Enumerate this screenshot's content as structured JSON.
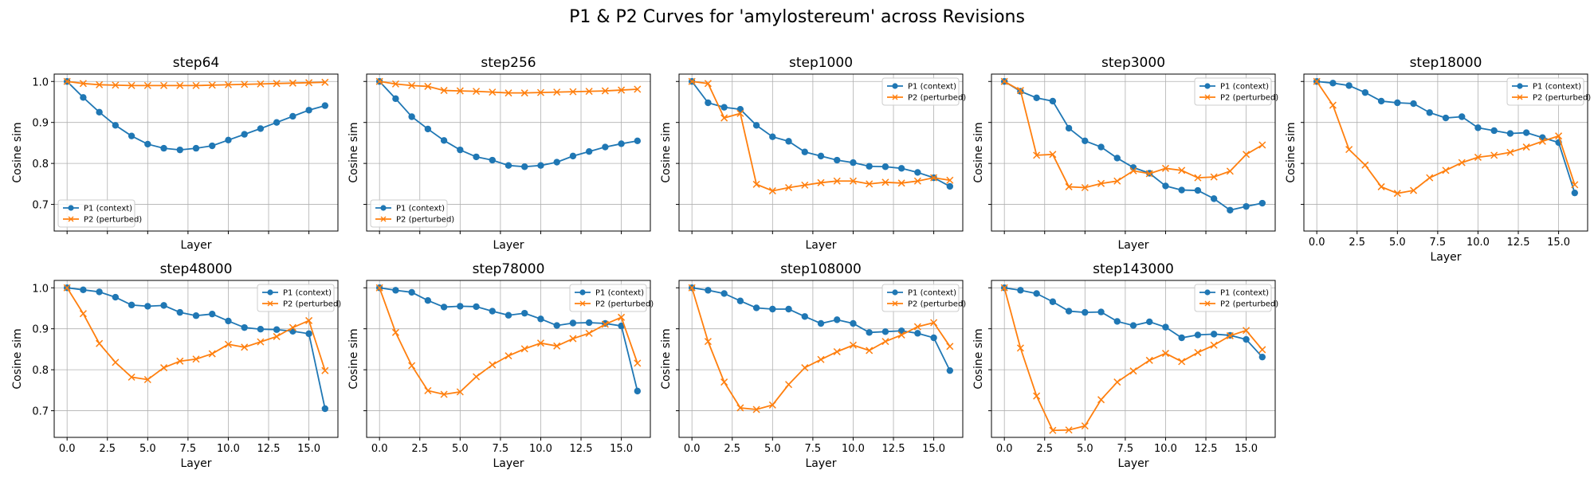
{
  "figure": {
    "title": "P1 & P2 Curves for 'amylostereum' across Revisions"
  },
  "colors": {
    "p1": "#1f77b4",
    "p2": "#ff7f0e",
    "grid": "#b0b0b0"
  },
  "chart_data": [
    {
      "type": "line",
      "title": "step64",
      "xlabel": "Layer",
      "ylabel": "Cosine sim",
      "x": [
        0,
        1,
        2,
        3,
        4,
        5,
        6,
        7,
        8,
        9,
        10,
        11,
        12,
        13,
        14,
        15,
        16
      ],
      "xlim": [
        -0.8,
        16.8
      ],
      "ylim": [
        0.635,
        1.018
      ],
      "grid": true,
      "legend_position": "lower-left",
      "series": [
        {
          "name": "P1 (context)",
          "marker": "circle",
          "values": [
            1.0,
            0.961,
            0.925,
            0.893,
            0.867,
            0.847,
            0.837,
            0.833,
            0.837,
            0.843,
            0.857,
            0.871,
            0.885,
            0.9,
            0.915,
            0.93,
            0.941
          ]
        },
        {
          "name": "P2 (perturbed)",
          "marker": "x",
          "values": [
            1.0,
            0.995,
            0.992,
            0.991,
            0.99,
            0.99,
            0.99,
            0.99,
            0.99,
            0.991,
            0.992,
            0.993,
            0.994,
            0.995,
            0.996,
            0.997,
            0.998
          ]
        }
      ]
    },
    {
      "type": "line",
      "title": "step256",
      "xlabel": "Layer",
      "ylabel": "Cosine sim",
      "x": [
        0,
        1,
        2,
        3,
        4,
        5,
        6,
        7,
        8,
        9,
        10,
        11,
        12,
        13,
        14,
        15,
        16
      ],
      "xlim": [
        -0.8,
        16.8
      ],
      "ylim": [
        0.635,
        1.018
      ],
      "grid": true,
      "legend_position": "lower-left",
      "series": [
        {
          "name": "P1 (context)",
          "marker": "circle",
          "values": [
            1.0,
            0.958,
            0.914,
            0.884,
            0.856,
            0.833,
            0.816,
            0.808,
            0.795,
            0.792,
            0.795,
            0.803,
            0.818,
            0.829,
            0.84,
            0.848,
            0.855
          ]
        },
        {
          "name": "P2 (perturbed)",
          "marker": "x",
          "values": [
            1.0,
            0.994,
            0.99,
            0.988,
            0.978,
            0.977,
            0.976,
            0.974,
            0.972,
            0.972,
            0.973,
            0.974,
            0.975,
            0.976,
            0.977,
            0.979,
            0.981
          ]
        }
      ]
    },
    {
      "type": "line",
      "title": "step1000",
      "xlabel": "Layer",
      "ylabel": "Cosine sim",
      "x": [
        0,
        1,
        2,
        3,
        4,
        5,
        6,
        7,
        8,
        9,
        10,
        11,
        12,
        13,
        14,
        15,
        16
      ],
      "xlim": [
        -0.8,
        16.8
      ],
      "ylim": [
        0.635,
        1.018
      ],
      "grid": true,
      "legend_position": "upper-right",
      "series": [
        {
          "name": "P1 (context)",
          "marker": "circle",
          "values": [
            1.0,
            0.948,
            0.937,
            0.932,
            0.893,
            0.865,
            0.854,
            0.828,
            0.818,
            0.808,
            0.802,
            0.793,
            0.792,
            0.788,
            0.778,
            0.765,
            0.744
          ]
        },
        {
          "name": "P2 (perturbed)",
          "marker": "x",
          "values": [
            1.0,
            0.995,
            0.911,
            0.922,
            0.749,
            0.733,
            0.741,
            0.747,
            0.753,
            0.757,
            0.757,
            0.75,
            0.754,
            0.752,
            0.757,
            0.765,
            0.759
          ]
        }
      ]
    },
    {
      "type": "line",
      "title": "step3000",
      "xlabel": "Layer",
      "ylabel": "Cosine sim",
      "x": [
        0,
        1,
        2,
        3,
        4,
        5,
        6,
        7,
        8,
        9,
        10,
        11,
        12,
        13,
        14,
        15,
        16
      ],
      "xlim": [
        -0.8,
        16.8
      ],
      "ylim": [
        0.635,
        1.018
      ],
      "grid": true,
      "legend_position": "upper-right",
      "series": [
        {
          "name": "P1 (context)",
          "marker": "circle",
          "values": [
            1.0,
            0.976,
            0.96,
            0.952,
            0.886,
            0.855,
            0.84,
            0.813,
            0.79,
            0.776,
            0.745,
            0.735,
            0.734,
            0.714,
            0.686,
            0.695,
            0.703
          ]
        },
        {
          "name": "P2 (perturbed)",
          "marker": "x",
          "values": [
            1.0,
            0.978,
            0.82,
            0.822,
            0.743,
            0.741,
            0.751,
            0.757,
            0.782,
            0.775,
            0.788,
            0.783,
            0.765,
            0.767,
            0.781,
            0.822,
            0.845
          ]
        }
      ]
    },
    {
      "type": "line",
      "title": "step18000",
      "xlabel": "Layer",
      "ylabel": "Cosine sim",
      "x": [
        0,
        1,
        2,
        3,
        4,
        5,
        6,
        7,
        8,
        9,
        10,
        11,
        12,
        13,
        14,
        15,
        16
      ],
      "xlim": [
        -0.8,
        16.8
      ],
      "ylim": [
        0.635,
        1.018
      ],
      "grid": true,
      "legend_position": "upper-right",
      "series": [
        {
          "name": "P1 (context)",
          "marker": "circle",
          "values": [
            1.0,
            0.996,
            0.99,
            0.973,
            0.952,
            0.948,
            0.946,
            0.924,
            0.911,
            0.914,
            0.887,
            0.88,
            0.873,
            0.875,
            0.863,
            0.851,
            0.728
          ]
        },
        {
          "name": "P2 (perturbed)",
          "marker": "x",
          "values": [
            1.0,
            0.942,
            0.834,
            0.796,
            0.743,
            0.727,
            0.734,
            0.765,
            0.783,
            0.802,
            0.815,
            0.82,
            0.827,
            0.84,
            0.854,
            0.867,
            0.748
          ]
        }
      ]
    },
    {
      "type": "line",
      "title": "step48000",
      "xlabel": "Layer",
      "ylabel": "Cosine sim",
      "x": [
        0,
        1,
        2,
        3,
        4,
        5,
        6,
        7,
        8,
        9,
        10,
        11,
        12,
        13,
        14,
        15,
        16
      ],
      "xlim": [
        -0.8,
        16.8
      ],
      "ylim": [
        0.635,
        1.018
      ],
      "grid": true,
      "legend_position": "upper-right",
      "series": [
        {
          "name": "P1 (context)",
          "marker": "circle",
          "values": [
            1.0,
            0.995,
            0.99,
            0.977,
            0.958,
            0.955,
            0.957,
            0.94,
            0.932,
            0.936,
            0.919,
            0.903,
            0.899,
            0.898,
            0.894,
            0.888,
            0.705
          ]
        },
        {
          "name": "P2 (perturbed)",
          "marker": "x",
          "values": [
            1.0,
            0.937,
            0.864,
            0.818,
            0.782,
            0.776,
            0.805,
            0.821,
            0.826,
            0.839,
            0.862,
            0.855,
            0.868,
            0.881,
            0.903,
            0.92,
            0.798
          ]
        }
      ]
    },
    {
      "type": "line",
      "title": "step78000",
      "xlabel": "Layer",
      "ylabel": "Cosine sim",
      "x": [
        0,
        1,
        2,
        3,
        4,
        5,
        6,
        7,
        8,
        9,
        10,
        11,
        12,
        13,
        14,
        15,
        16
      ],
      "xlim": [
        -0.8,
        16.8
      ],
      "ylim": [
        0.635,
        1.018
      ],
      "grid": true,
      "legend_position": "upper-right",
      "series": [
        {
          "name": "P1 (context)",
          "marker": "circle",
          "values": [
            1.0,
            0.994,
            0.989,
            0.969,
            0.953,
            0.955,
            0.954,
            0.943,
            0.933,
            0.938,
            0.924,
            0.908,
            0.914,
            0.915,
            0.913,
            0.907,
            0.748
          ]
        },
        {
          "name": "P2 (perturbed)",
          "marker": "x",
          "values": [
            1.0,
            0.891,
            0.81,
            0.749,
            0.74,
            0.746,
            0.783,
            0.812,
            0.834,
            0.851,
            0.865,
            0.858,
            0.876,
            0.889,
            0.911,
            0.928,
            0.816
          ]
        }
      ]
    },
    {
      "type": "line",
      "title": "step108000",
      "xlabel": "Layer",
      "ylabel": "Cosine sim",
      "x": [
        0,
        1,
        2,
        3,
        4,
        5,
        6,
        7,
        8,
        9,
        10,
        11,
        12,
        13,
        14,
        15,
        16
      ],
      "xlim": [
        -0.8,
        16.8
      ],
      "ylim": [
        0.635,
        1.018
      ],
      "grid": true,
      "legend_position": "upper-right",
      "series": [
        {
          "name": "P1 (context)",
          "marker": "circle",
          "values": [
            1.0,
            0.994,
            0.986,
            0.968,
            0.951,
            0.948,
            0.948,
            0.93,
            0.913,
            0.922,
            0.913,
            0.891,
            0.893,
            0.895,
            0.889,
            0.878,
            0.798
          ]
        },
        {
          "name": "P2 (perturbed)",
          "marker": "x",
          "values": [
            1.0,
            0.869,
            0.77,
            0.707,
            0.703,
            0.714,
            0.764,
            0.805,
            0.825,
            0.844,
            0.86,
            0.847,
            0.869,
            0.885,
            0.905,
            0.915,
            0.857
          ]
        }
      ]
    },
    {
      "type": "line",
      "title": "step143000",
      "xlabel": "Layer",
      "ylabel": "Cosine sim",
      "x": [
        0,
        1,
        2,
        3,
        4,
        5,
        6,
        7,
        8,
        9,
        10,
        11,
        12,
        13,
        14,
        15,
        16
      ],
      "xlim": [
        -0.8,
        16.8
      ],
      "ylim": [
        0.635,
        1.018
      ],
      "grid": true,
      "legend_position": "upper-right",
      "series": [
        {
          "name": "P1 (context)",
          "marker": "circle",
          "values": [
            1.0,
            0.994,
            0.986,
            0.966,
            0.943,
            0.94,
            0.941,
            0.918,
            0.908,
            0.917,
            0.904,
            0.878,
            0.885,
            0.887,
            0.884,
            0.874,
            0.831
          ]
        },
        {
          "name": "P2 (perturbed)",
          "marker": "x",
          "values": [
            1.0,
            0.853,
            0.736,
            0.652,
            0.653,
            0.663,
            0.727,
            0.77,
            0.797,
            0.823,
            0.84,
            0.82,
            0.842,
            0.86,
            0.883,
            0.896,
            0.849
          ]
        }
      ]
    }
  ],
  "axes": {
    "xticks": [
      0.0,
      2.5,
      5.0,
      7.5,
      10.0,
      12.5,
      15.0
    ],
    "xtick_labels": [
      "0.0",
      "2.5",
      "5.0",
      "7.5",
      "10.0",
      "12.5",
      "15.0"
    ],
    "yticks": [
      0.7,
      0.8,
      0.9,
      1.0
    ],
    "ytick_labels": [
      "0.7",
      "0.8",
      "0.9",
      "1.0"
    ]
  }
}
